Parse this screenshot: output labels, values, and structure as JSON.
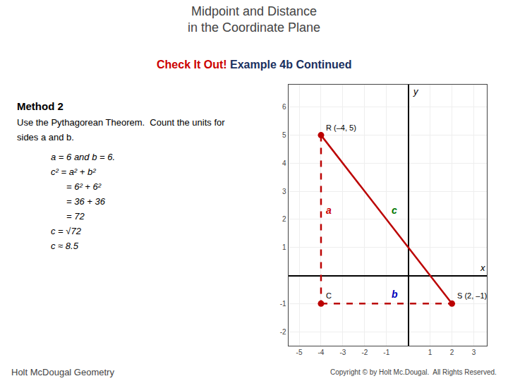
{
  "chart_data": {
    "type": "line",
    "title": "Midpoint and Distance\nin the Coordinate Plane",
    "subtitle": [
      {
        "text": "Check It Out!",
        "color": "#cc0000"
      },
      {
        "text": " Example 4b Continued",
        "color": "#1a3060"
      }
    ],
    "notes": [
      "Method 2",
      "Use the Pythagorean Theorem.  Count the units for",
      "sides a and b.",
      "a = 6 and b = 6.",
      "c² = a² + b²",
      "= 6² + 6²",
      "= 36 + 36",
      "= 72",
      "c = √72",
      "c ≈ 8.5"
    ],
    "xlabel": "x",
    "ylabel": "y",
    "xlim": [
      -5.5,
      3.6
    ],
    "ylim": [
      -2.5,
      6.8
    ],
    "xticks": [
      -5,
      -4,
      -3,
      -2,
      -1,
      1,
      2,
      3
    ],
    "yticks": [
      -2,
      -1,
      1,
      2,
      3,
      4,
      5,
      6
    ],
    "grid": true,
    "series": [
      {
        "x": [
          -4,
          -4
        ],
        "values": [
          5,
          -1
        ],
        "color": "#bb0000",
        "line_style": "dashed"
      },
      {
        "x": [
          -4,
          2
        ],
        "values": [
          -1,
          -1
        ],
        "color": "#bb0000",
        "line_style": "dashed"
      },
      {
        "x": [
          -4,
          2
        ],
        "values": [
          5,
          -1
        ],
        "color": "#bb0000",
        "line_style": "solid"
      },
      {
        "type": "scatter",
        "marker": "circle",
        "x": [
          -4,
          2,
          -4
        ],
        "values": [
          5,
          -1,
          -1
        ],
        "color": "#bb0000"
      }
    ],
    "annotations": [
      {
        "text": "R (–4, 5)",
        "x": -4,
        "y": 5
      },
      {
        "text": "S (2, –1)",
        "x": 2,
        "y": -1
      },
      {
        "text": "C",
        "x": -4,
        "y": -1
      },
      {
        "text": "a",
        "x": -4,
        "y": 2,
        "color": "#cc0000"
      },
      {
        "text": "b",
        "x": -1,
        "y": -1,
        "color": "#0000bb"
      },
      {
        "text": "c",
        "x": -1,
        "y": 2,
        "color": "#007700"
      }
    ],
    "footer": [
      "Holt McDougal Geometry",
      "Copyright © by Holt Mc.Dougal.  All Rights Reserved."
    ]
  }
}
